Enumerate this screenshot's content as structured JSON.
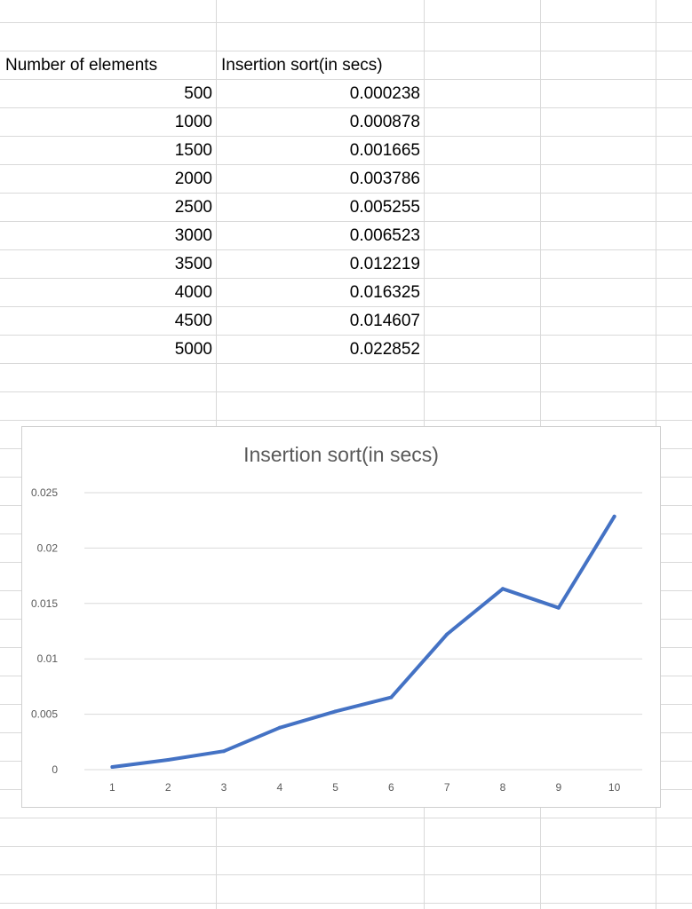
{
  "table": {
    "header_elements": "Number of elements",
    "header_time": "Insertion sort(in secs)",
    "rows": [
      {
        "n": "500",
        "t": "0.000238"
      },
      {
        "n": "1000",
        "t": "0.000878"
      },
      {
        "n": "1500",
        "t": "0.001665"
      },
      {
        "n": "2000",
        "t": "0.003786"
      },
      {
        "n": "2500",
        "t": "0.005255"
      },
      {
        "n": "3000",
        "t": "0.006523"
      },
      {
        "n": "3500",
        "t": "0.012219"
      },
      {
        "n": "4000",
        "t": "0.016325"
      },
      {
        "n": "4500",
        "t": "0.014607"
      },
      {
        "n": "5000",
        "t": "0.022852"
      }
    ]
  },
  "chart_data": {
    "type": "line",
    "title": "Insertion sort(in secs)",
    "xlabel": "",
    "ylabel": "",
    "x": [
      1,
      2,
      3,
      4,
      5,
      6,
      7,
      8,
      9,
      10
    ],
    "series": [
      {
        "values": [
          0.000238,
          0.000878,
          0.001665,
          0.003786,
          0.005255,
          0.006523,
          0.012219,
          0.016325,
          0.014607,
          0.022852
        ]
      }
    ],
    "y_ticks": [
      "0",
      "0.005",
      "0.01",
      "0.015",
      "0.02",
      "0.025"
    ],
    "ylim": [
      0,
      0.025
    ],
    "grid": true,
    "legend": "none",
    "line_color": "#4472c4"
  }
}
